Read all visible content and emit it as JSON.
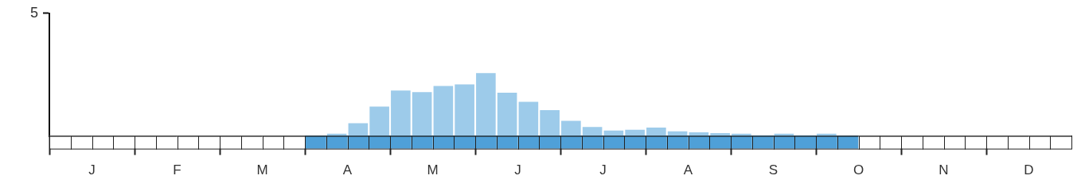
{
  "chart_data": {
    "type": "bar",
    "categories": [
      null,
      "J",
      null,
      null,
      null,
      "F",
      null,
      null,
      null,
      "M",
      null,
      null,
      null,
      "A",
      null,
      null,
      null,
      "M",
      null,
      null,
      null,
      "J",
      null,
      null,
      null,
      "J",
      null,
      null,
      null,
      "A",
      null,
      null,
      null,
      "S",
      null,
      null,
      null,
      "O",
      null,
      null,
      null,
      "N",
      null,
      null,
      null,
      "D",
      null,
      null
    ],
    "values": [
      0,
      0,
      0,
      0,
      0,
      0,
      0,
      0,
      0,
      0,
      0,
      0,
      0,
      0.09,
      0.52,
      1.2,
      1.85,
      1.79,
      2.04,
      2.1,
      2.56,
      1.76,
      1.39,
      1.05,
      0.62,
      0.37,
      0.22,
      0.25,
      0.34,
      0.19,
      0.15,
      0.12,
      0.09,
      0.03,
      0.09,
      0.03,
      0.09,
      0,
      0,
      0,
      0,
      0,
      0,
      0,
      0,
      0,
      0,
      0
    ],
    "presence": [
      false,
      false,
      false,
      false,
      false,
      false,
      false,
      false,
      false,
      false,
      false,
      false,
      true,
      true,
      true,
      true,
      true,
      true,
      true,
      true,
      true,
      true,
      true,
      true,
      true,
      true,
      true,
      true,
      true,
      true,
      true,
      true,
      true,
      true,
      true,
      true,
      true,
      true,
      false,
      false,
      false,
      false,
      false,
      false,
      false,
      false,
      false,
      false
    ],
    "color": "#9dcbea",
    "ylim": [
      0,
      5
    ],
    "yticks": [
      5
    ],
    "grid": false
  }
}
